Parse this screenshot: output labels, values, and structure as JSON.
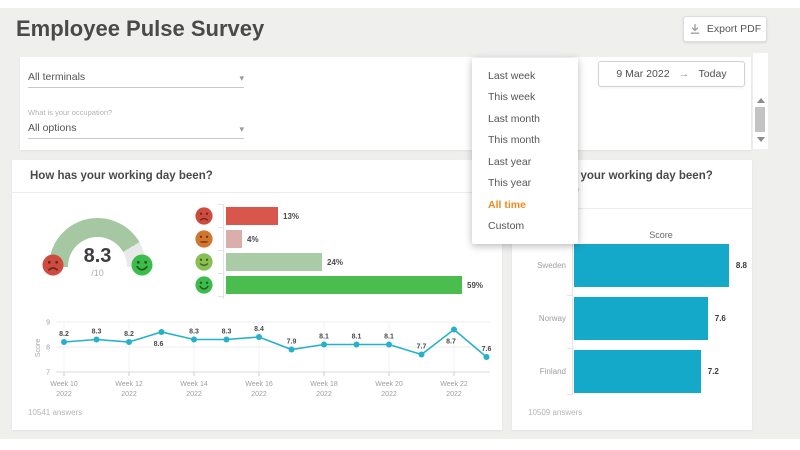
{
  "header": {
    "title": "Employee Pulse Survey",
    "export_label": "Export PDF"
  },
  "filters": {
    "terminal_value": "All terminals",
    "occupation_label": "What is your occupation?",
    "occupation_value": "All options",
    "date_start": "9 Mar 2022",
    "date_end": "Today"
  },
  "date_menu": {
    "items": [
      {
        "label": "Last week",
        "selected": false
      },
      {
        "label": "This week",
        "selected": false
      },
      {
        "label": "Last month",
        "selected": false
      },
      {
        "label": "This month",
        "selected": false
      },
      {
        "label": "Last year",
        "selected": false
      },
      {
        "label": "This year",
        "selected": false
      },
      {
        "label": "All time",
        "selected": true
      },
      {
        "label": "Custom",
        "selected": false
      }
    ]
  },
  "left_panel": {
    "title": "How has your working day been?",
    "answers": "10541 answers",
    "gauge": {
      "value": 8.3,
      "max": 10,
      "display": "8.3",
      "denominator": "/10"
    }
  },
  "right_panel": {
    "title": "How has your working day been?",
    "subtitle": "Per terminal",
    "score_header": "Score",
    "answers": "10509 answers"
  },
  "colors": {
    "background": "#efefee",
    "card": "#ffffff",
    "accent_orange": "#f08a1e",
    "teal": "#14a9c8",
    "gauge_fill": "#a5c7a1",
    "gauge_track": "#e9e9e9",
    "title_text": "#4a4a4a",
    "muted_text": "#9e9e9e"
  },
  "chart_data": [
    {
      "id": "overall-score-gauge",
      "type": "gauge",
      "value": 8.3,
      "max": 10,
      "fill_color": "#a5c7a1",
      "track_color": "#e9e9e9"
    },
    {
      "id": "sentiment-distribution",
      "type": "bar",
      "orientation": "horizontal",
      "categories": [
        "very-unhappy",
        "unhappy",
        "happy",
        "very-happy"
      ],
      "values": [
        13,
        4,
        24,
        59
      ],
      "value_labels": [
        "13%",
        "4%",
        "24%",
        "59%"
      ],
      "bar_colors": [
        "#d9564c",
        "#d9aeab",
        "#a9cba5",
        "#4bbc4e"
      ],
      "icon_colors": [
        "#cf4b3f",
        "#d2752f",
        "#85c051",
        "#3bbd4b"
      ],
      "icon_faces": [
        "frown",
        "neutral",
        "smile",
        "grin"
      ]
    },
    {
      "id": "score-trend",
      "type": "line",
      "ylabel": "Score",
      "ylim": [
        7,
        9
      ],
      "y_ticks": [
        9,
        8,
        7
      ],
      "weeks": [
        10,
        11,
        12,
        13,
        14,
        15,
        16,
        17,
        18,
        19,
        20,
        21,
        22,
        23
      ],
      "values": [
        8.2,
        8.3,
        8.2,
        8.6,
        8.3,
        8.3,
        8.4,
        7.9,
        8.1,
        8.1,
        8.1,
        7.7,
        8.7,
        7.6
      ],
      "x_tick_labels": [
        {
          "index": 0,
          "line1": "Week 10",
          "line2": "2022"
        },
        {
          "index": 2,
          "line1": "Week 12",
          "line2": "2022"
        },
        {
          "index": 4,
          "line1": "Week 14",
          "line2": "2022"
        },
        {
          "index": 6,
          "line1": "Week 16",
          "line2": "2022"
        },
        {
          "index": 8,
          "line1": "Week 18",
          "line2": "2022"
        },
        {
          "index": 10,
          "line1": "Week 20",
          "line2": "2022"
        },
        {
          "index": 12,
          "line1": "Week 22",
          "line2": "2022"
        }
      ],
      "label_below_indices": [
        3,
        12
      ],
      "line_color": "#25b1cb"
    },
    {
      "id": "score-by-terminal",
      "type": "bar",
      "orientation": "horizontal",
      "title": "Score",
      "categories": [
        "Sweden",
        "Norway",
        "Finland"
      ],
      "values": [
        8.8,
        7.6,
        7.2
      ],
      "xlim": [
        0,
        10
      ],
      "bar_color": "#14a9c8"
    }
  ]
}
